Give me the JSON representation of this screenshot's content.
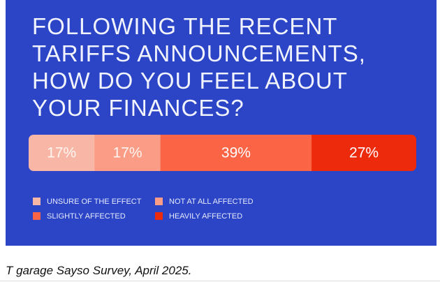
{
  "chart_data": {
    "type": "stacked_bar",
    "title": [
      "FOLLOWING THE RECENT",
      "TARIFFS ANNOUNCEMENTS,",
      "HOW DO YOU FEEL ABOUT",
      "YOUR FINANCES?"
    ],
    "series": [
      {
        "name": "UNSURE OF THE EFFECT",
        "color": "#f8b7a6",
        "values": [
          17
        ],
        "value_labels": [
          "17%"
        ]
      },
      {
        "name": "NOT AT ALL AFFECTED",
        "color": "#fa9c86",
        "values": [
          17
        ],
        "value_labels": [
          "17%"
        ]
      },
      {
        "name": "SLIGHTLY AFFECTED",
        "color": "#fc6446",
        "values": [
          39
        ],
        "value_labels": [
          "39%"
        ]
      },
      {
        "name": "HEAVILY AFFECTED",
        "color": "#ee2a0c",
        "values": [
          27
        ],
        "value_labels": [
          "27%"
        ]
      }
    ],
    "background": "#2b45c6",
    "caption": "T garage Sayso Survey, April 2025."
  }
}
